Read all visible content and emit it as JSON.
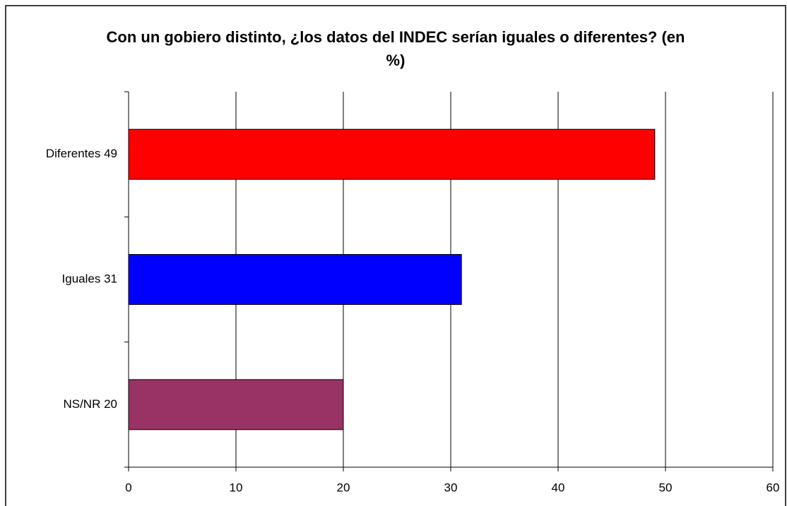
{
  "chart_data": {
    "type": "bar",
    "orientation": "horizontal",
    "title": "Con un gobiero distinto, ¿los datos del INDEC serían iguales o diferentes? (en %)",
    "categories": [
      "Diferentes 49",
      "Iguales 31",
      "NS/NR 20"
    ],
    "values": [
      49,
      31,
      20
    ],
    "colors": [
      "#ff0000",
      "#0000ff",
      "#993366"
    ],
    "xlim": [
      0,
      60
    ],
    "xticks": [
      0,
      10,
      20,
      30,
      40,
      50,
      60
    ],
    "grid": true
  }
}
